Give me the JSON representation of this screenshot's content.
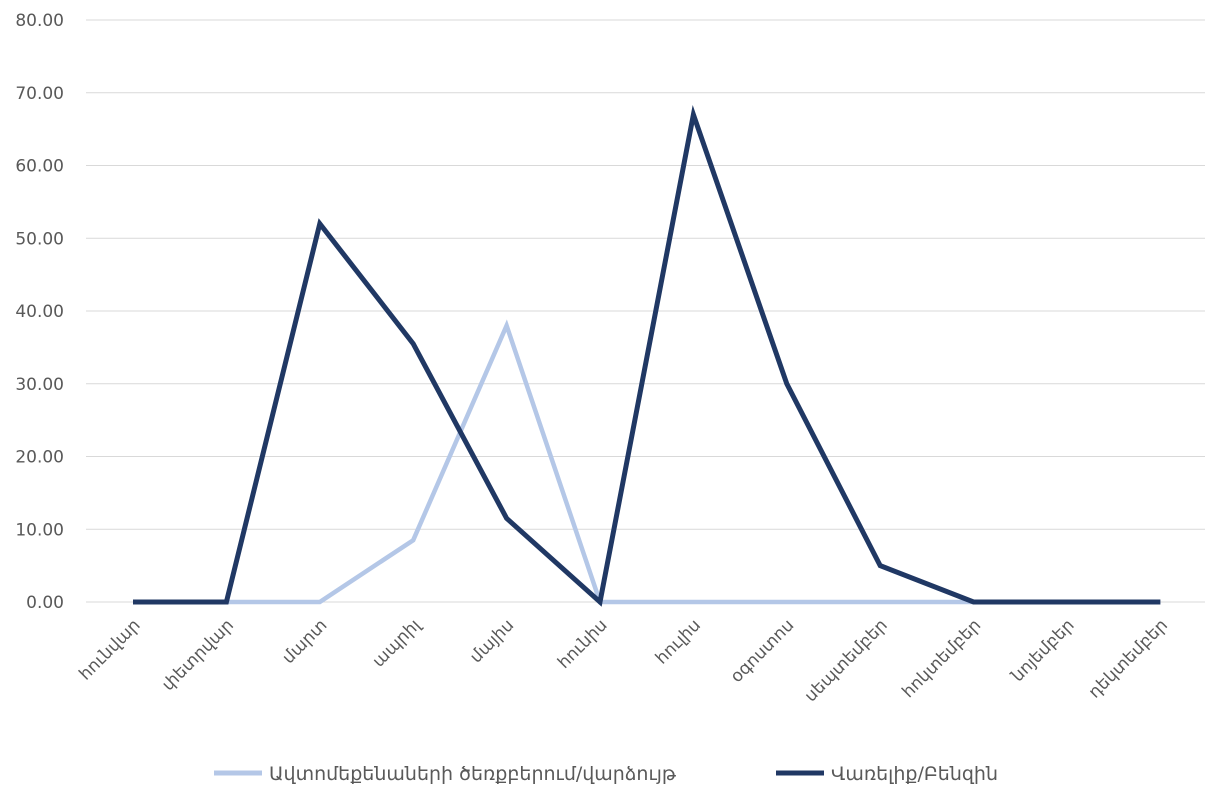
{
  "chart_data": {
    "type": "line",
    "categories": [
      "հունվար",
      "փետրվար",
      "մարտ",
      "ապրիլ",
      "մայիս",
      "հունիս",
      "հուլիս",
      "օգոստոս",
      "սեպտեմբեր",
      "հոկտեմբեր",
      "նոյեմբեր",
      "դեկտեմբեր"
    ],
    "y_ticks": [
      "0.00",
      "10.00",
      "20.00",
      "30.00",
      "40.00",
      "50.00",
      "60.00",
      "70.00",
      "80.00"
    ],
    "ylim": [
      0,
      80
    ],
    "grid": true,
    "legend_position": "bottom",
    "series": [
      {
        "name": "Ավտոմեքենաների ծեռքբերում/վարձույթ",
        "color": "#b4c7e7",
        "values": [
          0,
          0,
          0,
          8.5,
          38,
          0,
          0,
          0,
          0,
          0,
          null,
          null
        ]
      },
      {
        "name": "Վառելիք/Բենզին",
        "color": "#203864",
        "values": [
          0,
          0,
          52,
          35.5,
          11.5,
          0,
          67,
          30,
          5,
          0,
          0,
          0
        ]
      }
    ]
  }
}
